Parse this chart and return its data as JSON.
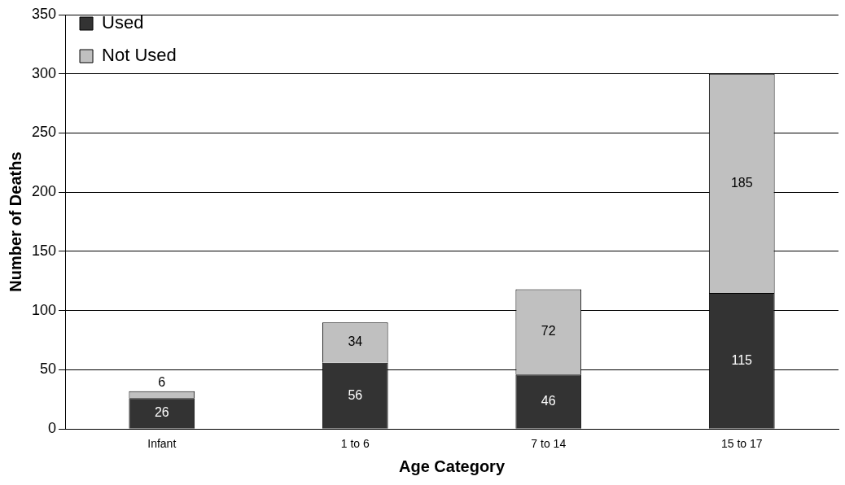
{
  "chart_data": {
    "type": "bar",
    "stacked": true,
    "xlabel": "Age Category",
    "ylabel": "Number of Deaths",
    "categories": [
      "Infant",
      "1 to 6",
      "7 to 14",
      "15 to 17"
    ],
    "series": [
      {
        "name": "Used",
        "color": "#333333",
        "values": [
          26,
          56,
          46,
          115
        ]
      },
      {
        "name": "Not Used",
        "color": "#c0c0c0",
        "values": [
          6,
          34,
          72,
          185
        ]
      }
    ],
    "ylim": [
      0,
      350
    ],
    "yticks": [
      0,
      50,
      100,
      150,
      200,
      250,
      300,
      350
    ],
    "grid": "y",
    "legend": "top left",
    "data_labels": true
  }
}
